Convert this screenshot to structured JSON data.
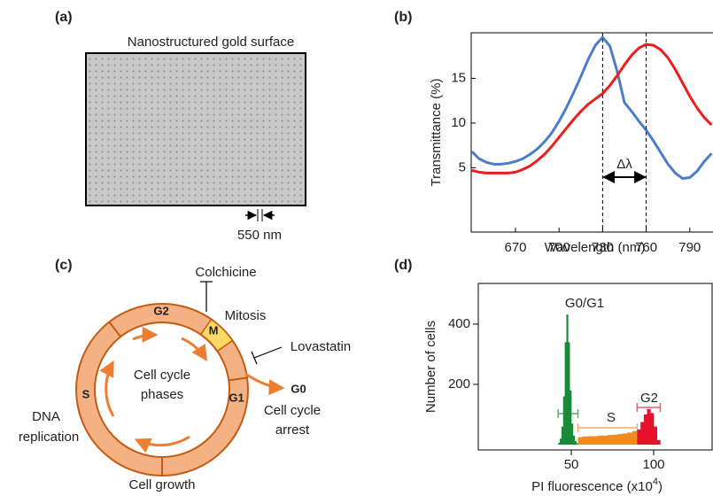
{
  "panel_a": {
    "label": "(a)",
    "title": "Nanostructured  gold surface",
    "scale_label": "550 nm"
  },
  "panel_c": {
    "label": "(c)",
    "phases": {
      "g2": "G2",
      "m": "M",
      "s": "S",
      "g1": "G1"
    },
    "center": [
      "Cell cycle",
      "phases"
    ],
    "colchicine": "Colchicine",
    "mitosis": "Mitosis",
    "lovastatin": "Lovastatin",
    "g0": "G0",
    "arrest": [
      "Cell cycle",
      "arrest"
    ],
    "dna": [
      "DNA",
      "replication"
    ],
    "growth": "Cell growth"
  },
  "chart_data": [
    {
      "type": "line",
      "panel_label": "(b)",
      "xlabel": "Wavelength  (nm)",
      "ylabel": "Transmittance  (%)",
      "x": [
        640,
        645,
        650,
        655,
        660,
        665,
        670,
        675,
        680,
        685,
        690,
        695,
        700,
        705,
        710,
        715,
        720,
        725,
        730,
        735,
        740,
        745,
        750,
        755,
        760,
        765,
        770,
        775,
        780,
        785,
        790,
        795,
        800,
        805
      ],
      "series": [
        {
          "color": "#4a7cc8",
          "values": [
            6.8,
            6.0,
            5.6,
            5.4,
            5.4,
            5.5,
            5.7,
            6.0,
            6.5,
            7.1,
            7.9,
            8.9,
            10.2,
            11.7,
            13.4,
            15.2,
            17.1,
            18.7,
            19.6,
            18.6,
            15.8,
            12.3,
            11.3,
            10.2,
            9.2,
            8.0,
            6.7,
            5.4,
            4.4,
            3.8,
            3.9,
            4.6,
            5.7,
            6.6
          ]
        },
        {
          "color": "#ee1c1c",
          "values": [
            4.7,
            4.5,
            4.4,
            4.4,
            4.4,
            4.4,
            4.5,
            4.8,
            5.2,
            5.8,
            6.5,
            7.4,
            8.4,
            9.4,
            10.4,
            11.3,
            12.1,
            12.7,
            13.3,
            14.2,
            15.3,
            16.5,
            17.6,
            18.4,
            18.8,
            18.7,
            18.2,
            17.3,
            16.0,
            14.5,
            13.0,
            11.7,
            10.6,
            9.8
          ]
        }
      ],
      "xlim": [
        639.5,
        806
      ],
      "ylim": [
        -2.2,
        20.1
      ],
      "xticks": [
        670,
        700,
        730,
        760,
        790
      ],
      "yticks": [
        5,
        10,
        15
      ],
      "markers": [
        730,
        760
      ],
      "annotation": "Δλ"
    },
    {
      "type": "histogram",
      "panel_label": "(d)",
      "xlabel": {
        "text": "PI fluorescence (x10",
        "superscript": "4",
        "suffix": ")"
      },
      "ylabel": "Number of cells",
      "series": [
        {
          "name": "G0/G1",
          "color": "#1a8a3a",
          "bins": [
            42,
            43,
            44,
            45,
            46,
            47,
            48,
            49,
            50,
            51,
            52,
            53,
            54
          ],
          "values": [
            6,
            20,
            60,
            160,
            340,
            432,
            340,
            180,
            70,
            30,
            12,
            5
          ]
        },
        {
          "name": "S",
          "color": "#f08a24",
          "bins": [
            54,
            57,
            60,
            63,
            66,
            69,
            72,
            75,
            78,
            81,
            84,
            87,
            90
          ],
          "values": [
            25,
            27,
            28,
            28,
            30,
            30,
            32,
            33,
            35,
            37,
            40,
            45
          ]
        },
        {
          "name": "G2",
          "color": "#e8102a",
          "bins": [
            90,
            92,
            94,
            96,
            98,
            100,
            102,
            104
          ],
          "values": [
            50,
            75,
            100,
            118,
            105,
            60,
            15
          ]
        }
      ],
      "xlim": [
        -6.5,
        135.5
      ],
      "ylim": [
        -17.6,
        535
      ],
      "xticks": [
        50,
        100
      ],
      "yticks": [
        200,
        400
      ]
    }
  ]
}
